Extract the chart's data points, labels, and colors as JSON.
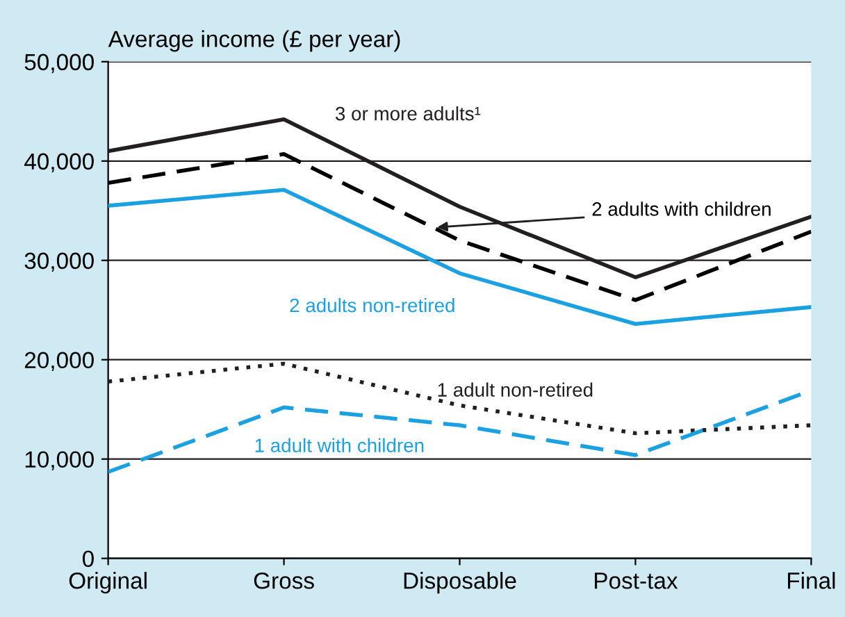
{
  "chart_data": {
    "type": "line",
    "ylabel": "Average income (£ per year)",
    "categories": [
      "Original",
      "Gross",
      "Disposable",
      "Post-tax",
      "Final"
    ],
    "series": [
      {
        "name": "3 or more adults¹",
        "color": "#231f20",
        "line_style": "solid",
        "values": [
          41000,
          44200,
          35400,
          28300,
          34400
        ]
      },
      {
        "name": "2 adults with children",
        "color": "#000000",
        "line_style": "dashed",
        "values": [
          37800,
          40700,
          32000,
          26000,
          32900
        ]
      },
      {
        "name": "2 adults non-retired",
        "color": "#1ba1e2",
        "line_style": "solid",
        "values": [
          35500,
          37100,
          28700,
          23600,
          25300
        ]
      },
      {
        "name": "1 adult non-retired",
        "color": "#231f20",
        "line_style": "dotted",
        "values": [
          17800,
          19600,
          15400,
          12600,
          13400
        ]
      },
      {
        "name": "1 adult with children",
        "color": "#1ba1e2",
        "line_style": "dashed",
        "values": [
          8700,
          15200,
          13400,
          10400,
          16900
        ]
      }
    ],
    "ylim": [
      0,
      50000
    ],
    "yticks": [
      0,
      {
        "value": 10000,
        "label": "10,000"
      },
      {
        "value": 20000,
        "label": "20,000"
      },
      {
        "value": 30000,
        "label": "30,000"
      },
      {
        "value": 40000,
        "label": "40,000"
      },
      {
        "value": 50000,
        "label": "50,000"
      }
    ],
    "grid": "y",
    "legend": false,
    "marker": "none"
  }
}
